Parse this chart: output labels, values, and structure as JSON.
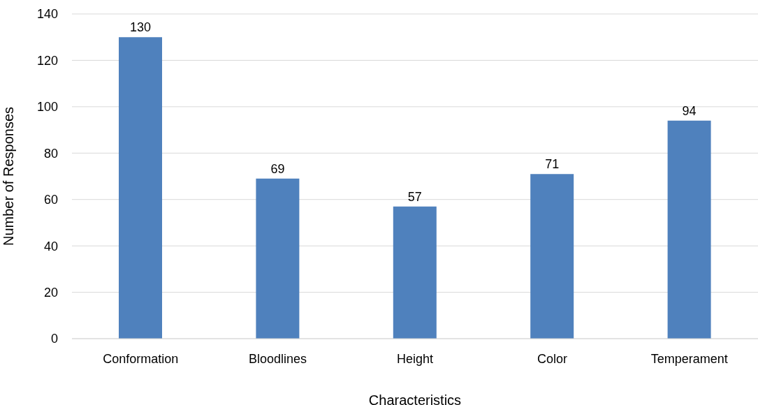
{
  "chart_data": {
    "type": "bar",
    "xlabel": "Characteristics",
    "ylabel": "Number of Responses",
    "categories": [
      "Conformation",
      "Bloodlines",
      "Height",
      "Color",
      "Temperament"
    ],
    "values": [
      130,
      69,
      57,
      71,
      94
    ],
    "color": "#4f81bd",
    "ylim": [
      0,
      140
    ],
    "yticks": [
      0,
      20,
      40,
      60,
      80,
      100,
      120,
      140
    ],
    "grid": "y",
    "data_labels": true
  }
}
